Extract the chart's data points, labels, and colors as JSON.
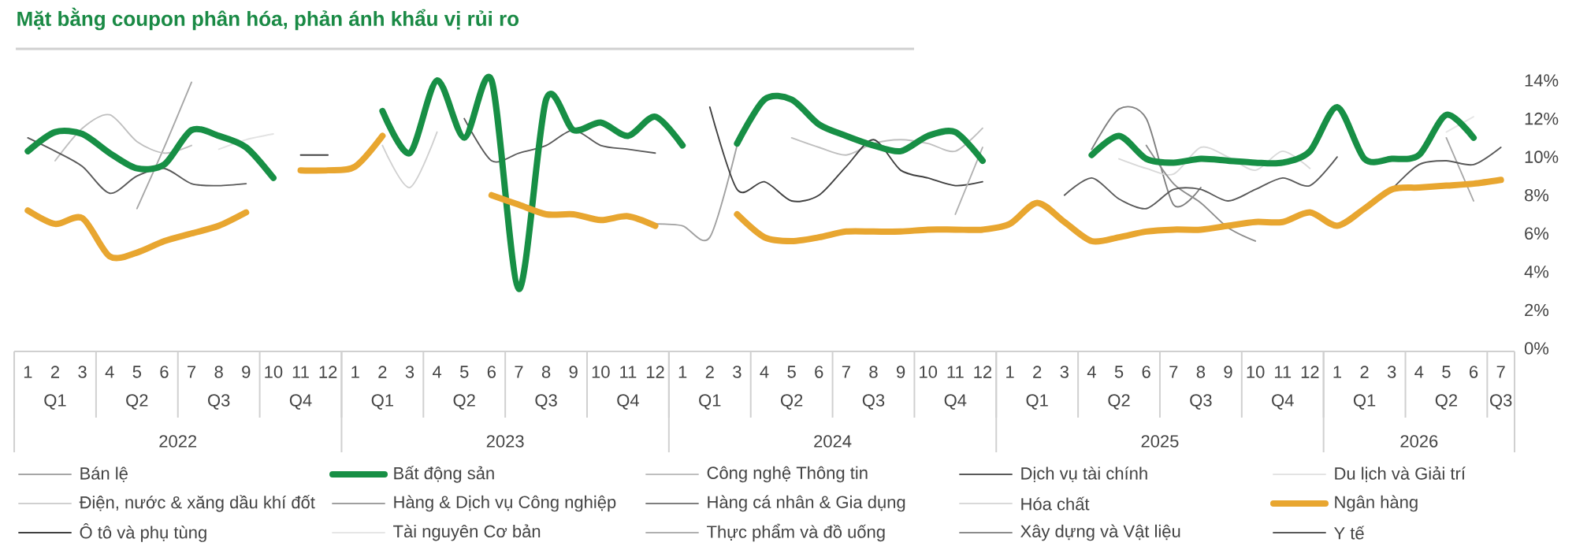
{
  "chart_data": {
    "type": "line",
    "title": "Mặt bằng coupon phân hóa, phản ánh khẩu vị rủi ro",
    "categories": [
      "1",
      "2",
      "3",
      "4",
      "5",
      "6",
      "7",
      "8",
      "9",
      "10",
      "11",
      "12",
      "1",
      "2",
      "3",
      "4",
      "5",
      "6",
      "7",
      "8",
      "9",
      "10",
      "11",
      "12",
      "1",
      "2",
      "3",
      "4",
      "5",
      "6",
      "7",
      "8",
      "9",
      "10",
      "11",
      "12",
      "1",
      "2",
      "3",
      "4",
      "5",
      "6",
      "7",
      "8",
      "9",
      "10",
      "11",
      "12",
      "1",
      "2",
      "3",
      "4",
      "5",
      "6",
      "7"
    ],
    "annotations": [
      "Q1",
      "Q2",
      "Q3",
      "Q4",
      "Q1",
      "Q2",
      "Q3",
      "Q4",
      "Q1",
      "Q2",
      "Q3",
      "Q4",
      "Q1",
      "Q2",
      "Q3",
      "Q4",
      "Q1",
      "Q2",
      "Q3",
      "2022",
      "2023",
      "2024",
      "2025",
      "2026"
    ],
    "ylim": [
      0,
      14
    ],
    "yticks": [
      {
        "value": 0,
        "label": "0%"
      },
      {
        "value": 2,
        "label": "2%"
      },
      {
        "value": 4,
        "label": "4%"
      },
      {
        "value": 6,
        "label": "6%"
      },
      {
        "value": 8,
        "label": "8%"
      },
      {
        "value": 10,
        "label": "10%"
      },
      {
        "value": 12,
        "label": "12%"
      },
      {
        "value": 14,
        "label": "14%"
      }
    ],
    "legend": "bottom",
    "series": [
      {
        "name": "Bán lệ",
        "color": "#a6a6a6",
        "values": [
          null,
          null,
          null,
          null,
          7.3,
          10.5,
          13.9,
          null,
          null,
          null,
          null,
          null,
          null,
          null,
          null,
          null,
          null,
          null,
          null,
          null,
          null,
          null,
          null,
          null,
          null,
          null,
          null,
          null,
          null,
          null,
          null,
          null,
          null,
          null,
          null,
          null,
          null,
          null,
          null,
          null,
          null,
          null,
          null,
          null,
          null,
          null,
          null,
          null,
          null,
          null,
          null,
          null,
          11.0,
          7.7,
          null
        ]
      },
      {
        "name": "Bất động sản",
        "color": "#178f45",
        "values": [
          10.3,
          11.3,
          11.2,
          10.2,
          9.4,
          9.6,
          11.4,
          11.1,
          10.5,
          8.9,
          null,
          null,
          null,
          12.4,
          10.2,
          14.0,
          11.0,
          14.0,
          3.1,
          13.0,
          11.4,
          11.8,
          11.1,
          12.1,
          10.6,
          null,
          10.7,
          13.0,
          13.0,
          11.7,
          11.1,
          10.6,
          10.3,
          11.1,
          11.3,
          9.8,
          null,
          null,
          null,
          10.1,
          11.1,
          9.9,
          9.7,
          9.9,
          9.8,
          9.7,
          9.7,
          10.3,
          12.6,
          9.9,
          9.9,
          10.1,
          12.2,
          11.0,
          null
        ]
      },
      {
        "name": "Công nghệ Thông tin",
        "color": "#bfbfbf",
        "values": [
          null,
          9.8,
          11.5,
          12.2,
          10.8,
          10.2,
          10.6,
          null,
          null,
          null,
          null,
          null,
          null,
          null,
          null,
          null,
          null,
          null,
          null,
          null,
          null,
          null,
          null,
          null,
          null,
          null,
          null,
          null,
          11.0,
          10.5,
          10.1,
          10.7,
          10.9,
          10.7,
          10.3,
          11.5,
          null,
          null,
          null,
          null,
          null,
          null,
          null,
          null,
          null,
          null,
          null,
          null,
          null,
          null,
          null,
          null,
          null,
          null,
          null
        ]
      },
      {
        "name": "Dịch vụ tài chính",
        "color": "#595959",
        "values": [
          11.0,
          10.3,
          9.5,
          8.1,
          9.0,
          9.4,
          8.6,
          8.5,
          8.6,
          null,
          null,
          null,
          null,
          null,
          null,
          null,
          12.0,
          9.8,
          10.2,
          10.6,
          11.4,
          10.6,
          10.4,
          10.2,
          null,
          null,
          null,
          null,
          null,
          null,
          null,
          null,
          null,
          null,
          null,
          null,
          null,
          null,
          null,
          null,
          null,
          null,
          null,
          null,
          null,
          null,
          null,
          null,
          null,
          null,
          null,
          null,
          null,
          null,
          null
        ]
      },
      {
        "name": "Du lịch và Giải trí",
        "color": "#e3e3e3",
        "values": [
          null,
          null,
          null,
          null,
          null,
          null,
          null,
          10.4,
          10.9,
          11.2,
          null,
          null,
          null,
          null,
          null,
          null,
          null,
          null,
          null,
          null,
          null,
          null,
          null,
          null,
          null,
          null,
          null,
          null,
          null,
          null,
          null,
          null,
          null,
          null,
          null,
          null,
          null,
          null,
          null,
          null,
          null,
          null,
          null,
          null,
          null,
          null,
          null,
          null,
          null,
          null,
          null,
          null,
          null,
          null,
          null
        ]
      },
      {
        "name": "Điện, nước & xăng dầu khí đốt",
        "color": "#d0d0d0",
        "values": [
          null,
          null,
          null,
          null,
          null,
          null,
          null,
          null,
          null,
          null,
          null,
          null,
          null,
          10.6,
          8.4,
          11.3,
          null,
          null,
          null,
          null,
          null,
          null,
          null,
          null,
          null,
          null,
          null,
          null,
          null,
          null,
          null,
          null,
          null,
          null,
          null,
          null,
          null,
          null,
          null,
          null,
          null,
          null,
          null,
          null,
          null,
          null,
          null,
          null,
          null,
          null,
          null,
          null,
          null,
          null,
          null
        ]
      },
      {
        "name": "Hàng & Dịch vụ Công nghiệp",
        "color": "#a0a0a0",
        "values": [
          null,
          null,
          null,
          null,
          null,
          null,
          null,
          null,
          null,
          null,
          null,
          null,
          null,
          null,
          null,
          null,
          null,
          null,
          null,
          null,
          null,
          null,
          null,
          6.5,
          6.4,
          5.8,
          10.6,
          null,
          null,
          null,
          null,
          null,
          null,
          null,
          null,
          null,
          null,
          null,
          null,
          null,
          null,
          null,
          null,
          null,
          null,
          null,
          null,
          null,
          null,
          null,
          null,
          null,
          null,
          null,
          null
        ]
      },
      {
        "name": "Hàng cá nhân & Gia dụng",
        "color": "#7f7f7f",
        "values": [
          null,
          null,
          null,
          null,
          null,
          null,
          null,
          null,
          null,
          null,
          null,
          null,
          null,
          null,
          null,
          null,
          null,
          null,
          null,
          null,
          null,
          null,
          null,
          null,
          null,
          null,
          null,
          null,
          null,
          null,
          null,
          null,
          null,
          null,
          null,
          null,
          null,
          null,
          null,
          10.4,
          12.5,
          12.0,
          7.5,
          8.4,
          null,
          null,
          null,
          null,
          null,
          null,
          null,
          null,
          null,
          null,
          null
        ]
      },
      {
        "name": "Hóa chất",
        "color": "#d9d9d9",
        "values": [
          null,
          null,
          null,
          null,
          null,
          null,
          null,
          null,
          null,
          null,
          null,
          null,
          null,
          null,
          null,
          null,
          null,
          null,
          null,
          null,
          null,
          null,
          null,
          null,
          null,
          null,
          null,
          null,
          null,
          null,
          null,
          null,
          null,
          null,
          null,
          null,
          null,
          null,
          null,
          null,
          9.9,
          9.4,
          9.1,
          10.5,
          10.0,
          9.3,
          10.3,
          9.4,
          null,
          null,
          null,
          null,
          null,
          null,
          null
        ]
      },
      {
        "name": "Ngân hàng",
        "color": "#e8a630",
        "values": [
          7.2,
          6.5,
          6.8,
          4.8,
          5.0,
          5.6,
          6.0,
          6.4,
          7.1,
          null,
          9.3,
          9.3,
          9.5,
          11.1,
          null,
          null,
          null,
          8.0,
          7.5,
          7.0,
          7.0,
          6.7,
          6.9,
          6.4,
          null,
          null,
          7.0,
          5.8,
          5.6,
          5.8,
          6.1,
          6.1,
          6.1,
          6.2,
          6.2,
          6.2,
          6.5,
          7.6,
          6.6,
          5.6,
          5.8,
          6.1,
          6.2,
          6.2,
          6.4,
          6.6,
          6.6,
          7.1,
          6.4,
          7.3,
          8.3,
          8.4,
          8.5,
          8.6,
          8.8
        ]
      },
      {
        "name": "Ô tô và phụ tùng",
        "color": "#404040",
        "values": [
          null,
          null,
          null,
          null,
          null,
          null,
          null,
          null,
          null,
          null,
          10.1,
          10.1,
          null,
          null,
          null,
          null,
          null,
          null,
          null,
          null,
          null,
          null,
          null,
          null,
          null,
          12.6,
          8.3,
          8.7,
          7.7,
          8.0,
          9.5,
          10.9,
          9.3,
          8.9,
          8.5,
          8.7,
          null,
          null,
          null,
          null,
          null,
          null,
          null,
          null,
          null,
          null,
          null,
          null,
          null,
          null,
          null,
          null,
          null,
          null,
          null
        ]
      },
      {
        "name": "Tài nguyên Cơ bản",
        "color": "#e6e6e6",
        "values": [
          null,
          null,
          null,
          null,
          null,
          null,
          null,
          null,
          null,
          null,
          null,
          null,
          null,
          null,
          null,
          null,
          null,
          null,
          null,
          null,
          null,
          null,
          null,
          null,
          null,
          null,
          null,
          null,
          null,
          null,
          null,
          null,
          null,
          null,
          null,
          null,
          null,
          null,
          null,
          null,
          null,
          null,
          null,
          null,
          null,
          null,
          null,
          null,
          null,
          null,
          null,
          null,
          11.3,
          12.1,
          null
        ]
      },
      {
        "name": "Thực phẩm và đồ uống",
        "color": "#b0b0b0",
        "values": [
          null,
          null,
          null,
          null,
          null,
          null,
          null,
          null,
          null,
          null,
          null,
          null,
          null,
          null,
          null,
          null,
          null,
          null,
          null,
          null,
          null,
          null,
          null,
          null,
          null,
          null,
          null,
          null,
          null,
          null,
          null,
          null,
          null,
          null,
          7.0,
          10.5,
          null,
          null,
          null,
          null,
          null,
          null,
          null,
          null,
          null,
          null,
          null,
          null,
          null,
          null,
          null,
          null,
          null,
          null,
          null
        ]
      },
      {
        "name": "Xây dựng và Vật liệu",
        "color": "#8c8c8c",
        "values": [
          null,
          null,
          null,
          null,
          null,
          null,
          null,
          null,
          null,
          null,
          null,
          null,
          null,
          null,
          null,
          null,
          null,
          null,
          null,
          null,
          null,
          null,
          null,
          null,
          null,
          null,
          null,
          null,
          null,
          null,
          null,
          null,
          null,
          null,
          null,
          null,
          null,
          null,
          null,
          null,
          null,
          10.6,
          8.6,
          7.6,
          6.3,
          5.6,
          null,
          null,
          null,
          null,
          null,
          null,
          null,
          null,
          null
        ]
      },
      {
        "name": "Y tế",
        "color": "#595959",
        "values": [
          null,
          null,
          null,
          null,
          null,
          null,
          null,
          null,
          null,
          null,
          null,
          null,
          null,
          null,
          null,
          null,
          null,
          null,
          null,
          null,
          null,
          null,
          null,
          null,
          null,
          null,
          null,
          null,
          null,
          null,
          null,
          null,
          null,
          null,
          null,
          null,
          null,
          null,
          8.0,
          8.9,
          7.8,
          7.3,
          8.3,
          8.3,
          7.7,
          8.3,
          8.9,
          8.5,
          10.0,
          null,
          8.3,
          9.6,
          9.8,
          9.6,
          10.5
        ]
      }
    ]
  }
}
